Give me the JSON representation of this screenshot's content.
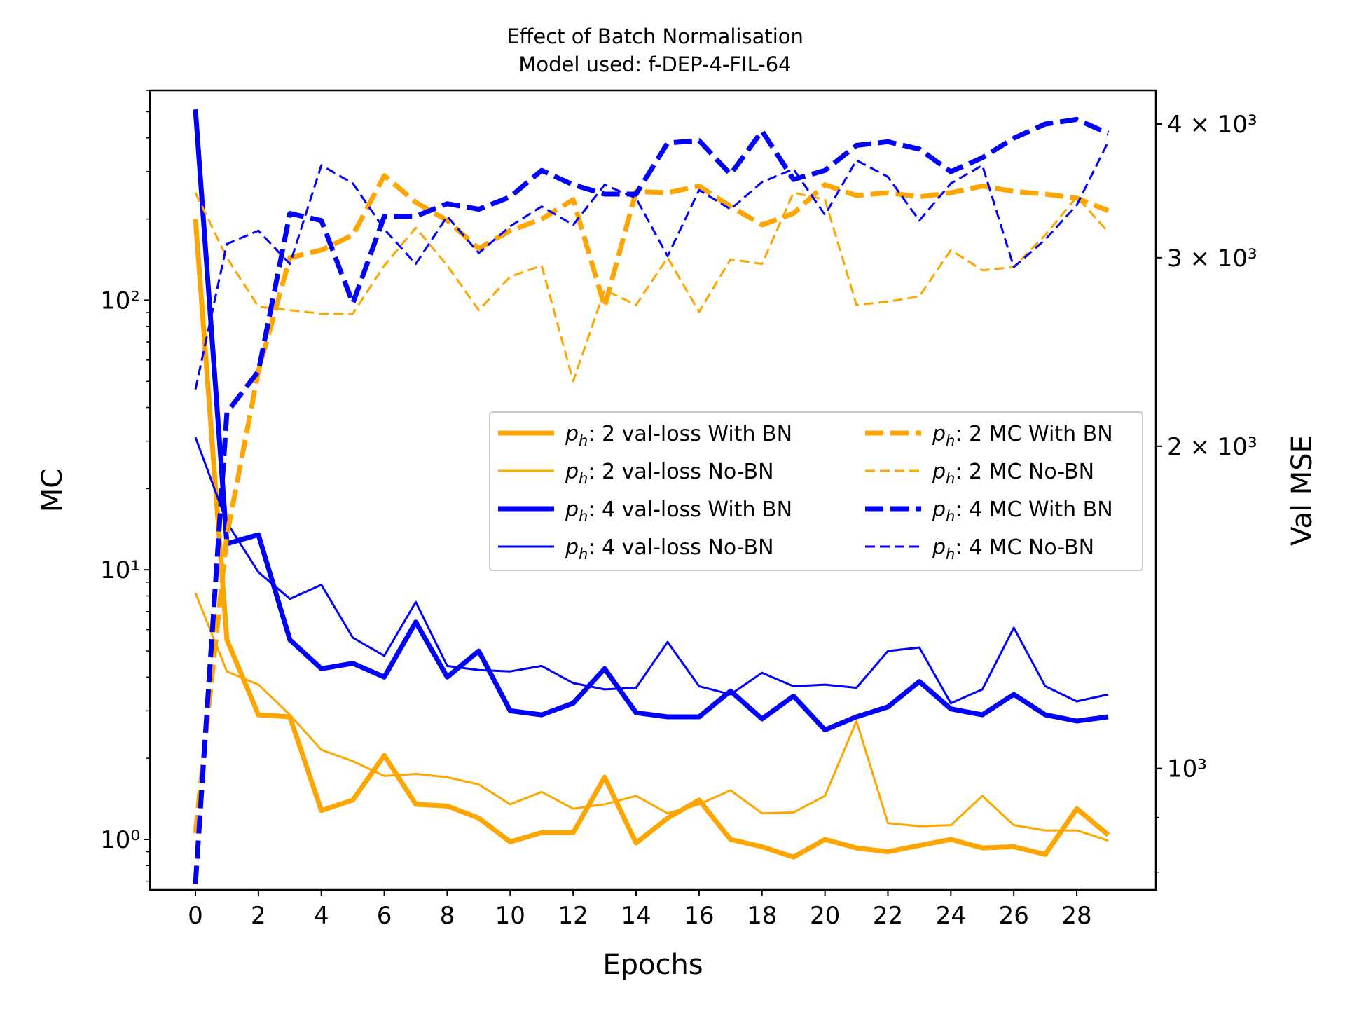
{
  "chart_data": {
    "type": "line",
    "title": "Effect of Batch Normalisation",
    "subtitle": "Model used: f-DEP-4-FIL-64",
    "xlabel": "Epochs",
    "ylabel": "MC",
    "ylabel_right": "Val MSE",
    "x": [
      0,
      1,
      2,
      3,
      4,
      5,
      6,
      7,
      8,
      9,
      10,
      11,
      12,
      13,
      14,
      15,
      16,
      17,
      18,
      19,
      20,
      21,
      22,
      23,
      24,
      25,
      26,
      27,
      28,
      29
    ],
    "x_ticks": [
      "0",
      "2",
      "4",
      "6",
      "8",
      "10",
      "12",
      "14",
      "16",
      "18",
      "20",
      "22",
      "24",
      "26",
      "28"
    ],
    "y_left": {
      "scale": "log",
      "lim": [
        0.65,
        600
      ],
      "ticks": [
        1,
        10,
        100
      ],
      "tick_labels": [
        "10⁰",
        "10¹",
        "10²"
      ]
    },
    "y_right": {
      "scale": "log",
      "lim": [
        770,
        4300
      ],
      "ticks": [
        1000,
        2000,
        3000,
        4000
      ],
      "tick_labels": [
        "10³",
        "2 × 10³",
        "3 × 10³",
        "4 × 10³"
      ]
    },
    "colors": {
      "ph2": "#ffa500",
      "ph4": "#0000ff"
    },
    "legend": {
      "position": "center-right",
      "columns": 2
    },
    "series": [
      {
        "name": "2 val-loss With BN",
        "axis": "left",
        "color": "#ffa500",
        "style": "solid",
        "width": 7,
        "values": [
          200,
          5.5,
          2.9,
          2.85,
          1.28,
          1.4,
          2.05,
          1.35,
          1.33,
          1.2,
          0.98,
          1.06,
          1.06,
          1.7,
          0.97,
          1.2,
          1.4,
          1.0,
          0.94,
          0.86,
          1.0,
          0.93,
          0.9,
          0.95,
          1.0,
          0.93,
          0.94,
          0.88,
          1.3,
          1.04
        ]
      },
      {
        "name": "2 val-loss No-BN",
        "axis": "left",
        "color": "#ffa500",
        "style": "solid",
        "width": 3,
        "values": [
          8.2,
          4.2,
          3.75,
          2.9,
          2.15,
          1.95,
          1.72,
          1.75,
          1.7,
          1.6,
          1.35,
          1.5,
          1.3,
          1.35,
          1.45,
          1.25,
          1.35,
          1.52,
          1.25,
          1.26,
          1.45,
          2.75,
          1.15,
          1.12,
          1.13,
          1.45,
          1.13,
          1.08,
          1.08,
          0.99
        ]
      },
      {
        "name": "4 val-loss With BN",
        "axis": "left",
        "color": "#0000ff",
        "style": "solid",
        "width": 7,
        "values": [
          510,
          12.5,
          13.5,
          5.5,
          4.3,
          4.5,
          4.0,
          6.4,
          4.0,
          5.0,
          3.0,
          2.9,
          3.2,
          4.3,
          2.95,
          2.85,
          2.85,
          3.55,
          2.8,
          3.4,
          2.55,
          2.85,
          3.1,
          3.85,
          3.05,
          2.9,
          3.45,
          2.9,
          2.75,
          2.85
        ]
      },
      {
        "name": "4 val-loss No-BN",
        "axis": "left",
        "color": "#0000ff",
        "style": "solid",
        "width": 3,
        "values": [
          31,
          15,
          9.8,
          7.8,
          8.8,
          5.6,
          4.8,
          7.6,
          4.4,
          4.25,
          4.2,
          4.4,
          3.8,
          3.6,
          3.65,
          5.4,
          3.7,
          3.45,
          4.15,
          3.7,
          3.75,
          3.65,
          5.0,
          5.15,
          3.2,
          3.6,
          6.1,
          3.7,
          3.25,
          3.45
        ]
      },
      {
        "name": "2 MC With BN",
        "axis": "right",
        "color": "#ffa500",
        "style": "dashed",
        "width": 7,
        "values": [
          870,
          1650,
          2350,
          3000,
          3050,
          3150,
          3580,
          3380,
          3250,
          3060,
          3180,
          3260,
          3400,
          2700,
          3460,
          3450,
          3500,
          3350,
          3220,
          3300,
          3510,
          3430,
          3450,
          3420,
          3450,
          3500,
          3460,
          3440,
          3410,
          3320
        ]
      },
      {
        "name": "2 MC No-BN",
        "axis": "right",
        "color": "#ffa500",
        "style": "dashed",
        "width": 3,
        "values": [
          3450,
          3000,
          2700,
          2680,
          2660,
          2660,
          2950,
          3200,
          2950,
          2680,
          2880,
          2950,
          2300,
          2800,
          2710,
          3000,
          2670,
          2990,
          2960,
          3450,
          3400,
          2710,
          2730,
          2760,
          3050,
          2920,
          2940,
          3150,
          3420,
          3170
        ]
      },
      {
        "name": "4 MC With BN",
        "axis": "right",
        "color": "#0000ff",
        "style": "dashed",
        "width": 7,
        "values": [
          780,
          2150,
          2350,
          3300,
          3250,
          2720,
          3280,
          3280,
          3370,
          3330,
          3420,
          3620,
          3510,
          3440,
          3440,
          3840,
          3860,
          3590,
          3940,
          3550,
          3620,
          3820,
          3850,
          3790,
          3610,
          3720,
          3880,
          4000,
          4040,
          3920
        ]
      },
      {
        "name": "4 MC No-BN",
        "axis": "right",
        "color": "#0000ff",
        "style": "dashed",
        "width": 3,
        "values": [
          2260,
          3090,
          3180,
          2960,
          3660,
          3520,
          3190,
          2960,
          3280,
          3030,
          3210,
          3350,
          3220,
          3510,
          3410,
          3010,
          3470,
          3330,
          3530,
          3630,
          3290,
          3700,
          3570,
          3250,
          3520,
          3660,
          2940,
          3120,
          3360,
          3850
        ]
      }
    ]
  },
  "legend_items": [
    {
      "prefix": "p",
      "sub": "h",
      "text": ": 2 val-loss With BN"
    },
    {
      "prefix": "p",
      "sub": "h",
      "text": ": 2 val-loss No-BN"
    },
    {
      "prefix": "p",
      "sub": "h",
      "text": ": 4 val-loss With BN"
    },
    {
      "prefix": "p",
      "sub": "h",
      "text": ": 4 val-loss No-BN"
    },
    {
      "prefix": "p",
      "sub": "h",
      "text": ": 2 MC With BN"
    },
    {
      "prefix": "p",
      "sub": "h",
      "text": ": 2 MC No-BN"
    },
    {
      "prefix": "p",
      "sub": "h",
      "text": ": 4 MC With BN"
    },
    {
      "prefix": "p",
      "sub": "h",
      "text": ": 4 MC No-BN"
    }
  ]
}
